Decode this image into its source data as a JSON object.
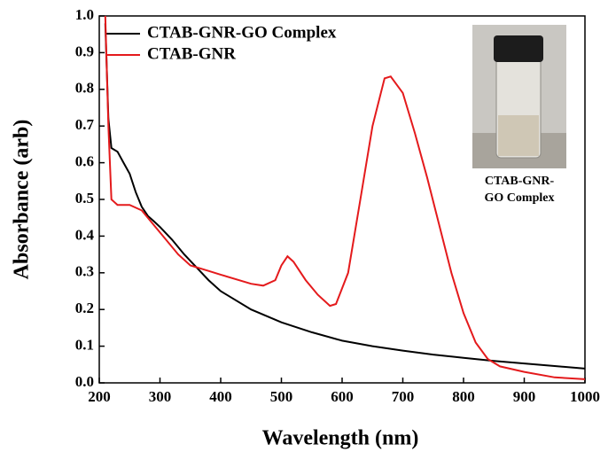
{
  "chart_data": {
    "type": "line",
    "xlabel": "Wavelength (nm)",
    "ylabel": "Absorbance (arb)",
    "xlim": [
      200,
      1000
    ],
    "xticks": [
      200,
      300,
      400,
      500,
      600,
      700,
      800,
      900,
      1000
    ],
    "ylim": [
      0,
      1
    ],
    "yticks": [
      {
        "value": 0,
        "label": "0.0"
      },
      0.1,
      0.2,
      0.3,
      0.4,
      0.5,
      0.6,
      0.7,
      0.8,
      0.9,
      {
        "value": 1,
        "label": "1.0"
      }
    ],
    "legend": "top-left",
    "inset_caption": [
      "CTAB-GNR-",
      "GO Complex"
    ],
    "series": [
      {
        "name": "CTAB-GNR-GO Complex",
        "color": "#000000",
        "x": [
          210,
          215,
          220,
          230,
          240,
          250,
          260,
          270,
          280,
          290,
          300,
          320,
          340,
          360,
          380,
          400,
          450,
          500,
          550,
          600,
          650,
          700,
          750,
          800,
          850,
          900,
          950,
          1000
        ],
        "values": [
          0.98,
          0.72,
          0.64,
          0.63,
          0.6,
          0.57,
          0.52,
          0.48,
          0.455,
          0.44,
          0.425,
          0.39,
          0.35,
          0.315,
          0.28,
          0.25,
          0.2,
          0.165,
          0.138,
          0.115,
          0.1,
          0.088,
          0.077,
          0.068,
          0.06,
          0.053,
          0.046,
          0.039
        ]
      },
      {
        "name": "CTAB-GNR",
        "color": "#e41a1c",
        "x": [
          210,
          215,
          220,
          230,
          250,
          270,
          300,
          330,
          350,
          380,
          400,
          450,
          470,
          490,
          500,
          510,
          520,
          540,
          560,
          580,
          590,
          610,
          630,
          650,
          670,
          680,
          700,
          720,
          740,
          760,
          780,
          800,
          820,
          840,
          860,
          900,
          950,
          1000
        ],
        "values": [
          1.0,
          0.7,
          0.5,
          0.485,
          0.485,
          0.47,
          0.41,
          0.35,
          0.32,
          0.305,
          0.295,
          0.27,
          0.265,
          0.28,
          0.32,
          0.345,
          0.33,
          0.28,
          0.24,
          0.21,
          0.215,
          0.3,
          0.5,
          0.7,
          0.83,
          0.835,
          0.79,
          0.68,
          0.56,
          0.43,
          0.3,
          0.19,
          0.11,
          0.065,
          0.045,
          0.03,
          0.015,
          0.01
        ]
      }
    ]
  }
}
